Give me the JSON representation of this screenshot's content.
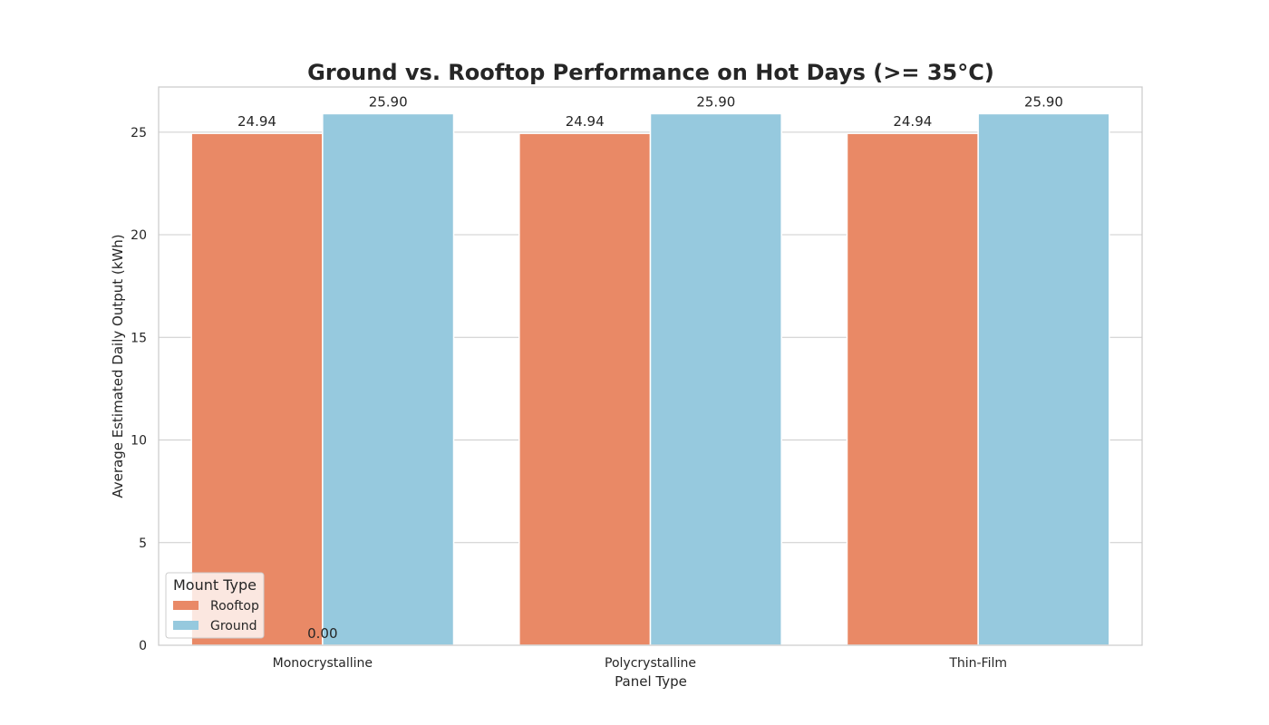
{
  "chart_data": {
    "type": "bar",
    "title": "Ground vs. Rooftop Performance on Hot Days (>= 35°C)",
    "xlabel": "Panel Type",
    "ylabel": "Average Estimated Daily Output (kWh)",
    "categories": [
      "Monocrystalline",
      "Polycrystalline",
      "Thin-Film"
    ],
    "series": [
      {
        "name": "Rooftop",
        "values": [
          24.94,
          24.94,
          24.94
        ],
        "color": "#e98966"
      },
      {
        "name": "Ground",
        "values": [
          25.9,
          25.9,
          25.9
        ],
        "color": "#96c9de"
      }
    ],
    "bar_labels": [
      [
        "24.94",
        "24.94",
        "24.94"
      ],
      [
        "25.90",
        "25.90",
        "25.90"
      ]
    ],
    "extra_annotation": {
      "text": "0.00",
      "category": "Monocrystalline",
      "value": 0
    },
    "ylim": [
      0,
      27.2
    ],
    "yticks": [
      0,
      5,
      10,
      15,
      20,
      25
    ],
    "grid": true,
    "legend": {
      "title": "Mount Type",
      "position": "lower-left"
    },
    "grid_color": "#cccccc",
    "text_color": "#262626"
  }
}
